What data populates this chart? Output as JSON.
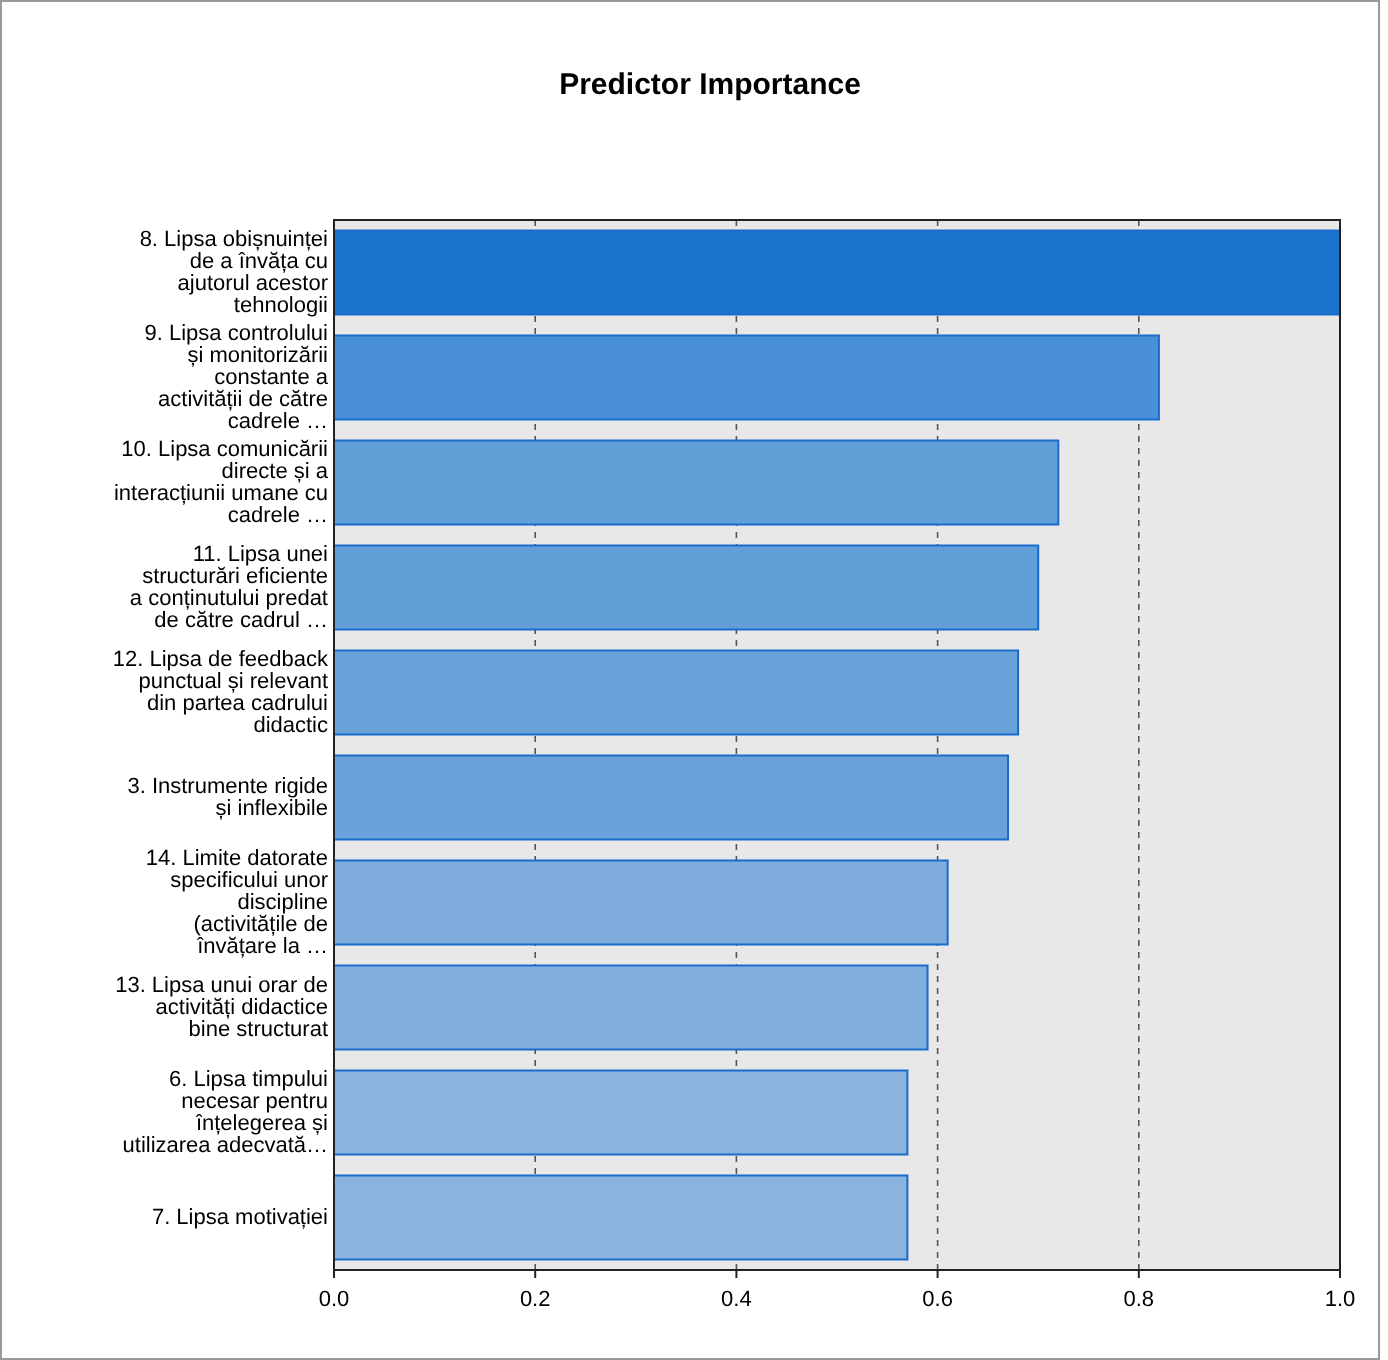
{
  "chart_data": {
    "type": "bar",
    "orientation": "horizontal",
    "title": "Predictor Importance",
    "categories": [
      "8. Lipsa obișnuinței de a învăța cu ajutorul acestor tehnologii",
      "9. Lipsa controlului și monitorizării constante a activității de către cadrele …",
      "10. Lipsa comunicării directe și a interacțiunii umane cu cadrele …",
      "11. Lipsa unei structurări eficiente a conținutului predat de către cadrul …",
      "12. Lipsa de feedback punctual și relevant din partea cadrului didactic",
      "3. Instrumente rigide și inflexibile",
      "14. Limite datorate specificului unor discipline (activitățile de învățare la …",
      "13. Lipsa unui orar de activități didactice bine structurat",
      "6. Lipsa timpului necesar pentru înțelegerea și utilizarea adecvată…",
      "7. Lipsa motivației"
    ],
    "values": [
      1.0,
      0.82,
      0.72,
      0.7,
      0.68,
      0.67,
      0.61,
      0.59,
      0.57,
      0.57
    ],
    "colors": [
      "#1a73cc",
      "#4a90d6",
      "#629fd8",
      "#629fd8",
      "#68a2d8",
      "#68a2d8",
      "#7eaddd",
      "#81b0de",
      "#8ab4de",
      "#8ab4de"
    ],
    "xlim": [
      0,
      1
    ],
    "xticks": [
      {
        "value": 0,
        "label": "0.0"
      },
      {
        "value": 0.2,
        "label": "0.2"
      },
      {
        "value": 0.4,
        "label": "0.4"
      },
      {
        "value": 0.6,
        "label": "0.6"
      },
      {
        "value": 0.8,
        "label": "0.8"
      },
      {
        "value": 1,
        "label": "1.0"
      }
    ],
    "grid": "x"
  }
}
